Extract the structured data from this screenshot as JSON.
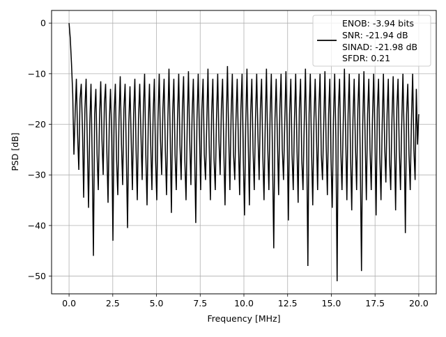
{
  "chart_data": {
    "type": "line",
    "title": "",
    "xlabel": "Frequency [MHz]",
    "ylabel": "PSD [dB]",
    "xlim": [
      -1.0,
      21.0
    ],
    "ylim": [
      -53.5,
      2.5
    ],
    "xticks": [
      0.0,
      2.5,
      5.0,
      7.5,
      10.0,
      12.5,
      15.0,
      17.5,
      20.0
    ],
    "xtick_labels": [
      "0.0",
      "2.5",
      "5.0",
      "7.5",
      "10.0",
      "12.5",
      "15.0",
      "17.5",
      "20.0"
    ],
    "yticks": [
      0,
      -10,
      -20,
      -30,
      -40,
      -50
    ],
    "ytick_labels": [
      "0",
      "−10",
      "−20",
      "−30",
      "−40",
      "−50"
    ],
    "grid": true,
    "legend_position": "top-right",
    "line_color": "#000000",
    "series": [
      {
        "name": "",
        "x_range": [
          0.0,
          20.0
        ],
        "values": [
          0.0,
          -3.0,
          -8.0,
          -14.0,
          -26.0,
          -18.0,
          -11.0,
          -22.0,
          -29.0,
          -15.0,
          -12.0,
          -21.0,
          -34.5,
          -17.0,
          -11.0,
          -24.0,
          -36.5,
          -20.0,
          -12.0,
          -27.0,
          -46.0,
          -18.0,
          -13.0,
          -26.0,
          -33.0,
          -19.0,
          -11.5,
          -23.0,
          -30.0,
          -16.0,
          -12.0,
          -25.0,
          -35.5,
          -20.0,
          -13.0,
          -22.0,
          -43.0,
          -18.0,
          -12.0,
          -27.0,
          -34.0,
          -19.0,
          -10.5,
          -24.0,
          -32.0,
          -17.0,
          -12.0,
          -26.0,
          -40.5,
          -20.0,
          -12.5,
          -23.0,
          -33.0,
          -18.0,
          -11.0,
          -25.0,
          -35.0,
          -19.0,
          -12.0,
          -22.0,
          -31.0,
          -17.0,
          -10.0,
          -26.0,
          -36.0,
          -20.0,
          -12.0,
          -24.0,
          -33.0,
          -18.0,
          -11.0,
          -27.0,
          -35.0,
          -19.0,
          -10.0,
          -23.0,
          -30.0,
          -17.0,
          -11.0,
          -25.0,
          -34.0,
          -20.0,
          -9.0,
          -22.0,
          -37.5,
          -18.0,
          -11.0,
          -26.0,
          -33.0,
          -19.0,
          -10.0,
          -24.0,
          -31.0,
          -17.0,
          -10.5,
          -27.0,
          -35.0,
          -20.0,
          -9.5,
          -23.0,
          -32.0,
          -18.0,
          -11.0,
          -25.0,
          -39.5,
          -19.0,
          -10.0,
          -22.0,
          -33.0,
          -17.0,
          -11.0,
          -26.0,
          -31.0,
          -20.0,
          -9.0,
          -24.0,
          -35.0,
          -18.0,
          -11.0,
          -27.0,
          -33.0,
          -19.0,
          -10.0,
          -23.0,
          -30.0,
          -17.0,
          -11.0,
          -25.0,
          -36.0,
          -20.0,
          -8.5,
          -22.0,
          -33.0,
          -18.0,
          -10.0,
          -26.0,
          -31.0,
          -19.0,
          -11.0,
          -24.0,
          -34.0,
          -17.0,
          -10.0,
          -27.0,
          -38.0,
          -20.0,
          -9.0,
          -23.0,
          -36.0,
          -18.0,
          -11.0,
          -25.0,
          -33.0,
          -19.0,
          -10.0,
          -22.0,
          -31.0,
          -17.0,
          -11.0,
          -26.0,
          -35.0,
          -20.0,
          -9.0,
          -24.0,
          -33.0,
          -18.0,
          -10.0,
          -27.0,
          -44.5,
          -19.0,
          -11.0,
          -23.0,
          -34.0,
          -17.0,
          -10.0,
          -25.0,
          -31.0,
          -20.0,
          -9.5,
          -22.0,
          -39.0,
          -18.0,
          -11.0,
          -26.0,
          -33.0,
          -19.0,
          -10.0,
          -24.0,
          -35.5,
          -17.0,
          -11.0,
          -27.0,
          -33.0,
          -20.0,
          -9.0,
          -23.0,
          -48.0,
          -18.0,
          -10.0,
          -25.0,
          -36.0,
          -19.0,
          -11.0,
          -22.0,
          -33.0,
          -17.0,
          -10.0,
          -26.0,
          -31.0,
          -20.0,
          -9.5,
          -24.0,
          -34.0,
          -18.0,
          -11.0,
          -27.0,
          -36.5,
          -19.0,
          -10.0,
          -23.0,
          -51.0,
          -17.0,
          -11.0,
          -25.0,
          -33.0,
          -20.0,
          -9.0,
          -22.0,
          -35.0,
          -18.0,
          -10.0,
          -26.0,
          -37.0,
          -19.0,
          -11.0,
          -24.0,
          -33.0,
          -17.0,
          -10.0,
          -27.0,
          -49.0,
          -20.0,
          -9.5,
          -23.0,
          -35.0,
          -18.0,
          -11.0,
          -25.0,
          -33.0,
          -19.0,
          -10.0,
          -22.0,
          -38.0,
          -17.0,
          -11.0,
          -26.0,
          -35.0,
          -20.0,
          -10.0,
          -24.0,
          -31.5,
          -18.0,
          -11.0,
          -27.0,
          -33.0,
          -19.0,
          -10.5,
          -23.0,
          -37.0,
          -17.0,
          -11.0,
          -25.0,
          -33.0,
          -20.0,
          -10.0,
          -22.0,
          -41.5,
          -18.0,
          -12.0,
          -26.0,
          -33.0,
          -19.0,
          -10.0,
          -25.0,
          -31.0,
          -13.0,
          -24.0,
          -18.0
        ]
      }
    ],
    "legend": {
      "lines": [
        "ENOB: -3.94 bits",
        "SNR: -21.94 dB",
        "SINAD: -21.98 dB",
        "SFDR: 0.21"
      ]
    }
  }
}
